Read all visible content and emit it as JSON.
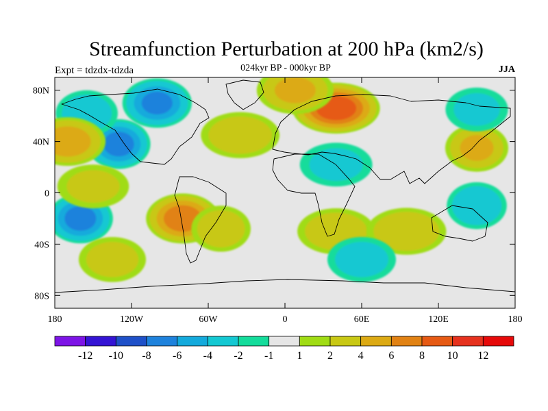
{
  "chart_data": {
    "type": "heatmap",
    "title": "Streamfunction Perturbation at 200 hPa (km2/s)",
    "subtitle": "024kyr BP - 000kyr BP",
    "left_label": "Expt = tdzdx-tdzda",
    "right_label": "JJA",
    "x_ticks": [
      "180",
      "120W",
      "60W",
      "0",
      "60E",
      "120E",
      "180"
    ],
    "x_values": [
      -180,
      -120,
      -60,
      0,
      60,
      120,
      180
    ],
    "y_ticks": [
      "80N",
      "40N",
      "0",
      "40S",
      "80S"
    ],
    "y_values": [
      80,
      40,
      0,
      -40,
      -80
    ],
    "xlim": [
      -180,
      180
    ],
    "ylim": [
      -90,
      90
    ],
    "colorbar": {
      "labels": [
        "-12",
        "-10",
        "-8",
        "-6",
        "-4",
        "-2",
        "-1",
        "1",
        "2",
        "4",
        "6",
        "8",
        "10",
        "12"
      ],
      "levels": [
        -12,
        -10,
        -8,
        -6,
        -4,
        -2,
        -1,
        1,
        2,
        4,
        6,
        8,
        10,
        12
      ],
      "colors": [
        "#7d14e6",
        "#3414d4",
        "#1e50c8",
        "#1e82dc",
        "#14aadc",
        "#14c8d2",
        "#14dc9b",
        "#e6e6e6",
        "#a0dc14",
        "#c8c814",
        "#dcaa14",
        "#e18214",
        "#e65a14",
        "#e6321e",
        "#e60a0a"
      ]
    },
    "anomaly_centers": [
      {
        "lon": 40,
        "lat": 66,
        "value": 9.5
      },
      {
        "lon": 8,
        "lat": 80,
        "value": 4.5
      },
      {
        "lon": -100,
        "lat": 70,
        "value": -6.5
      },
      {
        "lon": -130,
        "lat": 38,
        "value": -7
      },
      {
        "lon": -155,
        "lat": 62,
        "value": -3.5
      },
      {
        "lon": -170,
        "lat": 40,
        "value": 5.5
      },
      {
        "lon": -35,
        "lat": 45,
        "value": 3.5
      },
      {
        "lon": 40,
        "lat": 22,
        "value": -2.5
      },
      {
        "lon": -80,
        "lat": -20,
        "value": 7.5
      },
      {
        "lon": -50,
        "lat": -28,
        "value": 3.5
      },
      {
        "lon": -160,
        "lat": -20,
        "value": -7
      },
      {
        "lon": -135,
        "lat": -52,
        "value": 3
      },
      {
        "lon": 40,
        "lat": -30,
        "value": 3.5
      },
      {
        "lon": 95,
        "lat": -30,
        "value": 4
      },
      {
        "lon": 60,
        "lat": -52,
        "value": -3
      },
      {
        "lon": 150,
        "lat": 35,
        "value": 4.5
      },
      {
        "lon": 150,
        "lat": -10,
        "value": -4
      },
      {
        "lon": 150,
        "lat": 65,
        "value": -2.5
      },
      {
        "lon": -150,
        "lat": 5,
        "value": 2.5
      }
    ]
  }
}
